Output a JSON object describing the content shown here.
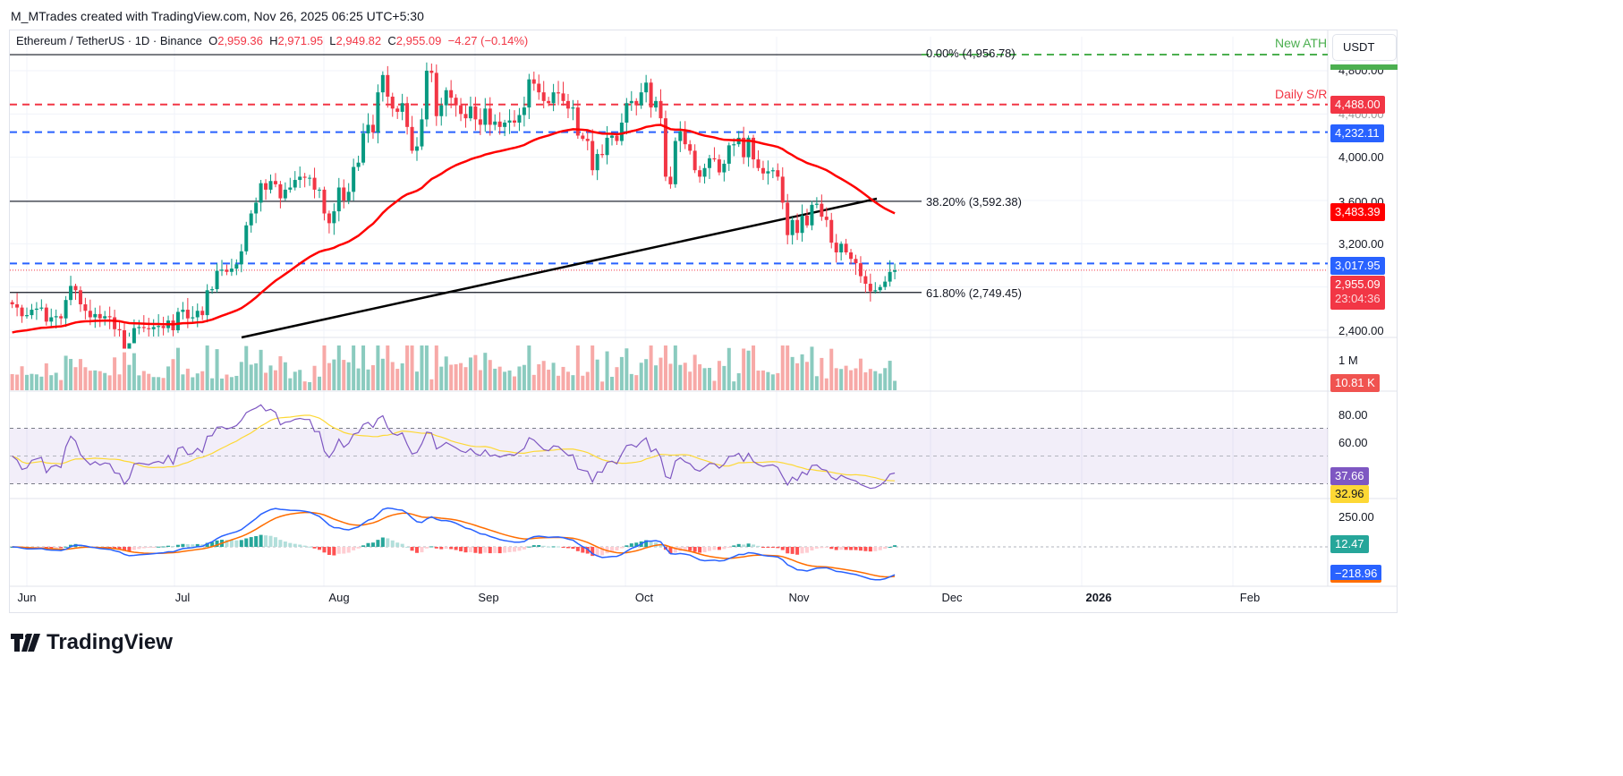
{
  "credit": "M_MTrades created with TradingView.com, Nov 26, 2025 06:25 UTC+5:30",
  "legend": {
    "symbol": "Ethereum / TetherUS · 1D · Binance",
    "o_label": "O",
    "o": "2,959.36",
    "h_label": "H",
    "h": "2,971.95",
    "l_label": "L",
    "l": "2,949.82",
    "c_label": "C",
    "c": "2,955.09",
    "change": "−4.27 (−0.14%)"
  },
  "currency_button": "USDT",
  "annotations": {
    "ath": "New ATH",
    "daily_sr": "Daily S/R",
    "fib0": "0.00% (4,956.78)",
    "fib382": "38.20% (3,592.38)",
    "fib618": "61.80% (2,749.45)"
  },
  "price_axis": {
    "ticks": [
      "4,800.00",
      "4,400.00",
      "4,000.00",
      "3,600.00",
      "3,200.00",
      "2,400.00"
    ],
    "badges": {
      "sr": "4,488.00",
      "blue_upper": "4,232.11",
      "ema": "3,483.39",
      "blue_lower": "3,017.95",
      "last": "2,955.09",
      "countdown": "23:04:36"
    }
  },
  "volume_axis": {
    "tick": "1 M",
    "last": "10.81 K"
  },
  "rsi_axis": {
    "ticks": [
      "80.00",
      "60.00"
    ],
    "rsi": "37.66",
    "rsi_ma": "32.96"
  },
  "macd_axis": {
    "tick": "250.00",
    "hist": "12.47",
    "macd": "−218.96"
  },
  "time_axis": [
    "Jun",
    "Jul",
    "Aug",
    "Sep",
    "Oct",
    "Nov",
    "Dec",
    "2026",
    "Feb"
  ],
  "brand": "TradingView",
  "colors": {
    "up": "#089981",
    "down": "#f23645",
    "ath": "#4caf50",
    "sr": "#f23645",
    "support": "#2962ff",
    "ema": "#ff0000",
    "rsi": "#7e57c2",
    "rsi_ma": "#fdd835",
    "macd": "#2962ff",
    "signal": "#ff6d00"
  },
  "chart_data": {
    "type": "candlestick",
    "symbol": "ETH/USDT",
    "interval": "1D",
    "first_date": "2025-05-29",
    "last_date": "2025-11-26",
    "ylim": [
      2350,
      5000
    ],
    "closes": [
      2640,
      2610,
      2530,
      2540,
      2590,
      2600,
      2610,
      2480,
      2520,
      2530,
      2510,
      2680,
      2810,
      2770,
      2640,
      2580,
      2520,
      2550,
      2510,
      2530,
      2520,
      2410,
      2400,
      2230,
      2280,
      2420,
      2430,
      2420,
      2410,
      2430,
      2440,
      2420,
      2490,
      2400,
      2570,
      2590,
      2510,
      2520,
      2580,
      2540,
      2770,
      2780,
      2950,
      2960,
      2940,
      2970,
      3010,
      3130,
      3370,
      3480,
      3580,
      3760,
      3700,
      3780,
      3750,
      3620,
      3700,
      3720,
      3790,
      3820,
      3810,
      3810,
      3700,
      3700,
      3480,
      3390,
      3500,
      3720,
      3600,
      3680,
      3910,
      3950,
      4220,
      4300,
      4230,
      4600,
      4760,
      4560,
      4450,
      4420,
      4500,
      4280,
      4060,
      4100,
      4350,
      4800,
      4780,
      4380,
      4480,
      4620,
      4550,
      4480,
      4400,
      4360,
      4470,
      4350,
      4300,
      4450,
      4300,
      4330,
      4280,
      4320,
      4340,
      4320,
      4390,
      4460,
      4720,
      4680,
      4600,
      4520,
      4500,
      4600,
      4590,
      4520,
      4450,
      4460,
      4200,
      4170,
      4150,
      3880,
      4030,
      4020,
      4180,
      4200,
      4150,
      4320,
      4500,
      4520,
      4480,
      4600,
      4690,
      4460,
      4520,
      4360,
      3820,
      3750,
      4150,
      4240,
      4120,
      4060,
      3880,
      3820,
      3900,
      3990,
      3980,
      3860,
      3940,
      4110,
      4120,
      4180,
      4000,
      4180,
      3980,
      3900,
      3850,
      3870,
      3880,
      3820,
      3580,
      3280,
      3420,
      3300,
      3460,
      3370,
      3560,
      3570,
      3450,
      3420,
      3210,
      3120,
      3200,
      3120,
      3060,
      3020,
      2900,
      2830,
      2760,
      2770,
      2800,
      2850,
      2940,
      2955
    ],
    "levels": {
      "ath": 4956.78,
      "daily_sr": 4488.0,
      "resistance_upper": 4232.11,
      "fib_382": 3592.38,
      "resistance_lower": 3017.95,
      "last": 2955.09,
      "fib_618": 2749.45
    },
    "ema50_last": 3483.39,
    "rsi": {
      "value": 37.66,
      "ma": 32.96,
      "bands": [
        70,
        50,
        30
      ]
    },
    "macd": {
      "histogram": 12.47,
      "macd": -218.96
    }
  }
}
